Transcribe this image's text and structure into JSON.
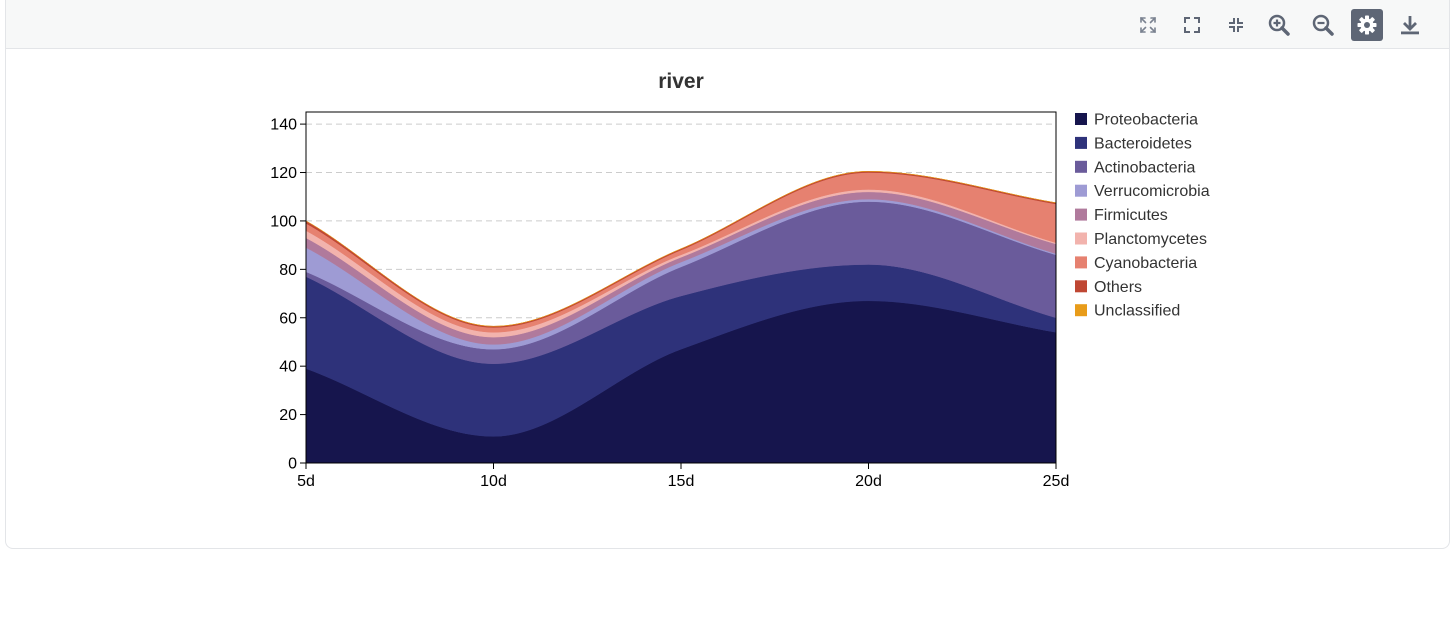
{
  "toolbar": {
    "buttons": [
      {
        "name": "expand-icon",
        "active": false
      },
      {
        "name": "fullscreen-icon",
        "active": false
      },
      {
        "name": "compress-icon",
        "active": false
      },
      {
        "name": "zoom-in-icon",
        "active": false
      },
      {
        "name": "zoom-out-icon",
        "active": false
      },
      {
        "name": "gear-icon",
        "active": true
      },
      {
        "name": "download-icon",
        "active": false
      }
    ]
  },
  "chart_data": {
    "type": "area",
    "stacked": true,
    "smooth": true,
    "title": "river",
    "xlabel": "",
    "ylabel": "",
    "categories": [
      "5d",
      "10d",
      "15d",
      "20d",
      "25d"
    ],
    "ylim": [
      0,
      145
    ],
    "yticks": [
      0,
      20,
      40,
      60,
      80,
      100,
      120,
      140
    ],
    "grid": "horizontal-dashed",
    "legend_position": "right",
    "series": [
      {
        "name": "Proteobacteria",
        "color": "#16154d",
        "values": [
          39,
          11,
          47,
          67,
          54
        ]
      },
      {
        "name": "Bacteroidetes",
        "color": "#2e327a",
        "values": [
          38,
          30,
          22,
          15,
          6
        ]
      },
      {
        "name": "Actinobacteria",
        "color": "#6a5b9b",
        "values": [
          2,
          6,
          12,
          26,
          26
        ]
      },
      {
        "name": "Verrucomicrobia",
        "color": "#9e9bd4",
        "values": [
          10,
          2,
          2,
          1,
          0.5
        ]
      },
      {
        "name": "Firmicutes",
        "color": "#b07a9c",
        "values": [
          4,
          3,
          2,
          3,
          4
        ]
      },
      {
        "name": "Planctomycetes",
        "color": "#f2b3ad",
        "values": [
          3,
          2,
          1,
          1,
          0.5
        ]
      },
      {
        "name": "Cyanobacteria",
        "color": "#e68170",
        "values": [
          3,
          2,
          2,
          7,
          16
        ]
      },
      {
        "name": "Others",
        "color": "#bf4733",
        "values": [
          1,
          0.5,
          0.5,
          0.5,
          0.5
        ]
      },
      {
        "name": "Unclassified",
        "color": "#e89c1a",
        "values": [
          0,
          0,
          0,
          0,
          0
        ]
      }
    ]
  }
}
